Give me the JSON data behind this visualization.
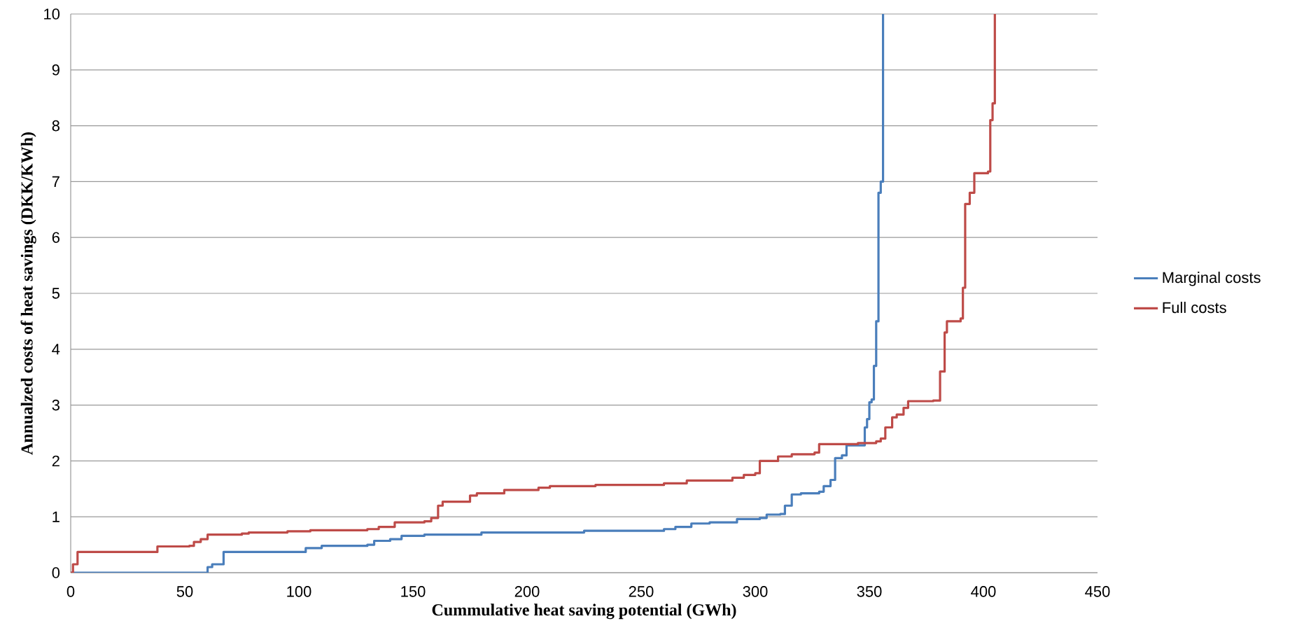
{
  "chart_data": {
    "type": "step",
    "xlabel": "Cummulative heat saving potential (GWh)",
    "ylabel": "Annualzed costs of heat savings (DKK/KWh)",
    "xlim": [
      0,
      450
    ],
    "ylim": [
      0,
      10
    ],
    "xticks": [
      0,
      50,
      100,
      150,
      200,
      250,
      300,
      350,
      400,
      450
    ],
    "yticks": [
      0,
      1,
      2,
      3,
      4,
      5,
      6,
      7,
      8,
      9,
      10
    ],
    "grid": "y",
    "legend": "right",
    "series": [
      {
        "name": "Marginal costs",
        "color": "#4a7ebb",
        "x": [
          0,
          59,
          60,
          62,
          67,
          103,
          110,
          130,
          133,
          140,
          145,
          155,
          180,
          225,
          260,
          265,
          272,
          280,
          292,
          302,
          305,
          311,
          313,
          316,
          320,
          328,
          330,
          333,
          335,
          338,
          340,
          348,
          349,
          350,
          351,
          352,
          353,
          354,
          355,
          356
        ],
        "values": [
          0,
          0,
          0.1,
          0.15,
          0.37,
          0.44,
          0.48,
          0.5,
          0.57,
          0.6,
          0.66,
          0.68,
          0.72,
          0.75,
          0.78,
          0.82,
          0.88,
          0.9,
          0.96,
          0.98,
          1.04,
          1.05,
          1.2,
          1.4,
          1.42,
          1.45,
          1.55,
          1.66,
          2.05,
          2.1,
          2.28,
          2.6,
          2.75,
          3.05,
          3.1,
          3.7,
          4.5,
          6.8,
          7.0,
          10
        ]
      },
      {
        "name": "Full costs",
        "color": "#be4b48",
        "x": [
          0,
          1,
          3,
          38,
          52,
          54,
          57,
          60,
          75,
          78,
          95,
          105,
          130,
          135,
          142,
          155,
          158,
          161,
          163,
          175,
          178,
          190,
          205,
          210,
          230,
          260,
          270,
          290,
          295,
          300,
          302,
          310,
          316,
          326,
          328,
          345,
          353,
          355,
          357,
          360,
          362,
          365,
          367,
          378,
          381,
          383,
          384,
          390,
          391,
          392,
          394,
          396,
          402,
          403,
          404,
          405
        ],
        "values": [
          0,
          0.15,
          0.37,
          0.47,
          0.48,
          0.55,
          0.6,
          0.68,
          0.7,
          0.72,
          0.74,
          0.76,
          0.78,
          0.82,
          0.9,
          0.92,
          0.98,
          1.2,
          1.27,
          1.38,
          1.42,
          1.48,
          1.52,
          1.55,
          1.57,
          1.6,
          1.65,
          1.7,
          1.75,
          1.78,
          2.0,
          2.08,
          2.12,
          2.15,
          2.3,
          2.32,
          2.35,
          2.4,
          2.6,
          2.78,
          2.83,
          2.95,
          3.07,
          3.08,
          3.6,
          4.3,
          4.5,
          4.55,
          5.1,
          6.6,
          6.8,
          7.15,
          7.18,
          8.1,
          8.4,
          10
        ]
      }
    ]
  }
}
